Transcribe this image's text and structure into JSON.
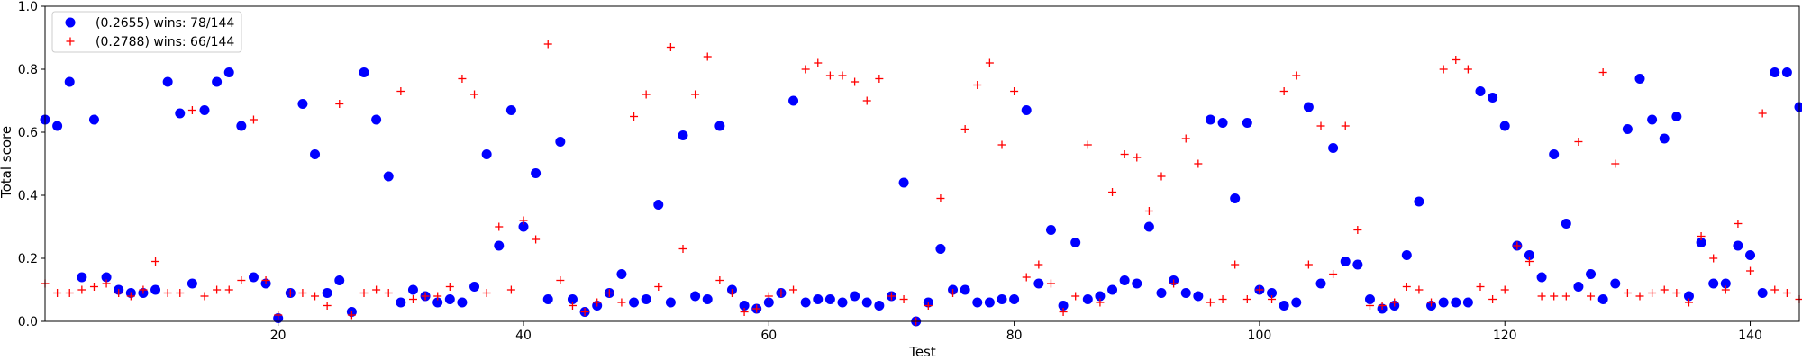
{
  "chart_data": {
    "type": "scatter",
    "title": "",
    "xlabel": "Test",
    "ylabel": "Total score",
    "xlim": [
      1,
      144
    ],
    "ylim": [
      0.0,
      1.0
    ],
    "x_ticks": [
      20,
      40,
      60,
      80,
      100,
      120,
      140
    ],
    "y_ticks": [
      0.0,
      0.2,
      0.4,
      0.6,
      0.8,
      1.0
    ],
    "x_tick_labels": [
      "20",
      "40",
      "60",
      "80",
      "100",
      "120",
      "140"
    ],
    "y_tick_labels": [
      "0.0",
      "0.2",
      "0.4",
      "0.6",
      "0.8",
      "1.0"
    ],
    "grid": false,
    "legend_position": "top-left",
    "series": [
      {
        "name": "(0.2655) wins: 78/144",
        "marker": "circle",
        "color": "#0000ff",
        "x": [
          1,
          2,
          3,
          4,
          5,
          6,
          7,
          8,
          9,
          10,
          11,
          12,
          13,
          14,
          15,
          16,
          17,
          18,
          19,
          20,
          21,
          22,
          23,
          24,
          25,
          26,
          27,
          28,
          29,
          30,
          31,
          32,
          33,
          34,
          35,
          36,
          37,
          38,
          39,
          40,
          41,
          42,
          43,
          44,
          45,
          46,
          47,
          48,
          49,
          50,
          51,
          52,
          53,
          54,
          55,
          56,
          57,
          58,
          59,
          60,
          61,
          62,
          63,
          64,
          65,
          66,
          67,
          68,
          69,
          70,
          71,
          72,
          73,
          74,
          75,
          76,
          77,
          78,
          79,
          80,
          81,
          82,
          83,
          84,
          85,
          86,
          87,
          88,
          89,
          90,
          91,
          92,
          93,
          94,
          95,
          96,
          97,
          98,
          99,
          100,
          101,
          102,
          103,
          104,
          105,
          106,
          107,
          108,
          109,
          110,
          111,
          112,
          113,
          114,
          115,
          116,
          117,
          118,
          119,
          120,
          121,
          122,
          123,
          124,
          125,
          126,
          127,
          128,
          129,
          130,
          131,
          132,
          133,
          134,
          135,
          136,
          137,
          138,
          139,
          140,
          141,
          142,
          143,
          144
        ],
        "y": [
          0.64,
          0.62,
          0.76,
          0.14,
          0.64,
          0.14,
          0.1,
          0.09,
          0.09,
          0.1,
          0.76,
          0.66,
          0.12,
          0.67,
          0.76,
          0.79,
          0.62,
          0.14,
          0.12,
          0.01,
          0.09,
          0.69,
          0.53,
          0.09,
          0.13,
          0.03,
          0.79,
          0.64,
          0.46,
          0.06,
          0.1,
          0.08,
          0.06,
          0.07,
          0.06,
          0.11,
          0.53,
          0.24,
          0.67,
          0.3,
          0.47,
          0.07,
          0.57,
          0.07,
          0.03,
          0.05,
          0.09,
          0.15,
          0.06,
          0.07,
          0.37,
          0.06,
          0.59,
          0.08,
          0.07,
          0.62,
          0.1,
          0.05,
          0.04,
          0.06,
          0.09,
          0.7,
          0.06,
          0.07,
          0.07,
          0.06,
          0.08,
          0.06,
          0.05,
          0.08,
          0.44,
          0.0,
          0.06,
          0.23,
          0.1,
          0.1,
          0.06,
          0.06,
          0.07,
          0.07,
          0.67,
          0.12,
          0.29,
          0.05,
          0.25,
          0.07,
          0.08,
          0.1,
          0.13,
          0.12,
          0.3,
          0.09,
          0.13,
          0.09,
          0.08,
          0.64,
          0.63,
          0.39,
          0.63,
          0.1,
          0.09,
          0.05,
          0.06,
          0.68,
          0.12,
          0.55,
          0.19,
          0.18,
          0.07,
          0.04,
          0.05,
          0.21,
          0.38,
          0.05,
          0.06,
          0.06,
          0.06,
          0.73,
          0.71,
          0.62,
          0.24,
          0.21,
          0.14,
          0.53,
          0.31,
          0.11,
          0.15,
          0.07,
          0.12,
          0.61,
          0.77,
          0.64,
          0.58,
          0.65,
          0.08,
          0.25,
          0.12,
          0.12,
          0.24,
          0.21,
          0.09,
          0.79,
          0.79,
          0.68
        ]
      },
      {
        "name": "(0.2788) wins: 66/144",
        "marker": "plus",
        "color": "#ff0000",
        "x": [
          1,
          2,
          3,
          4,
          5,
          6,
          7,
          8,
          9,
          10,
          11,
          12,
          13,
          14,
          15,
          16,
          17,
          18,
          19,
          20,
          21,
          22,
          23,
          24,
          25,
          26,
          27,
          28,
          29,
          30,
          31,
          32,
          33,
          34,
          35,
          36,
          37,
          38,
          39,
          40,
          41,
          42,
          43,
          44,
          45,
          46,
          47,
          48,
          49,
          50,
          51,
          52,
          53,
          54,
          55,
          56,
          57,
          58,
          59,
          60,
          61,
          62,
          63,
          64,
          65,
          66,
          67,
          68,
          69,
          70,
          71,
          72,
          73,
          74,
          75,
          76,
          77,
          78,
          79,
          80,
          81,
          82,
          83,
          84,
          85,
          86,
          87,
          88,
          89,
          90,
          91,
          92,
          93,
          94,
          95,
          96,
          97,
          98,
          99,
          100,
          101,
          102,
          103,
          104,
          105,
          106,
          107,
          108,
          109,
          110,
          111,
          112,
          113,
          114,
          115,
          116,
          117,
          118,
          119,
          120,
          121,
          122,
          123,
          124,
          125,
          126,
          127,
          128,
          129,
          130,
          131,
          132,
          133,
          134,
          135,
          136,
          137,
          138,
          139,
          140,
          141,
          142,
          143,
          144
        ],
        "y": [
          0.12,
          0.09,
          0.09,
          0.1,
          0.11,
          0.12,
          0.09,
          0.08,
          0.1,
          0.19,
          0.09,
          0.09,
          0.67,
          0.08,
          0.1,
          0.1,
          0.13,
          0.64,
          0.13,
          0.02,
          0.09,
          0.09,
          0.08,
          0.05,
          0.69,
          0.02,
          0.09,
          0.1,
          0.09,
          0.73,
          0.07,
          0.08,
          0.08,
          0.11,
          0.77,
          0.72,
          0.09,
          0.3,
          0.1,
          0.32,
          0.26,
          0.88,
          0.13,
          0.05,
          0.03,
          0.06,
          0.09,
          0.06,
          0.65,
          0.72,
          0.11,
          0.87,
          0.23,
          0.72,
          0.84,
          0.13,
          0.09,
          0.03,
          0.04,
          0.08,
          0.09,
          0.1,
          0.8,
          0.82,
          0.78,
          0.78,
          0.76,
          0.7,
          0.77,
          0.08,
          0.07,
          0.0,
          0.05,
          0.39,
          0.09,
          0.61,
          0.75,
          0.82,
          0.56,
          0.73,
          0.14,
          0.18,
          0.12,
          0.03,
          0.08,
          0.56,
          0.06,
          0.41,
          0.53,
          0.52,
          0.35,
          0.46,
          0.12,
          0.58,
          0.5,
          0.06,
          0.07,
          0.18,
          0.07,
          0.1,
          0.07,
          0.73,
          0.78,
          0.18,
          0.62,
          0.15,
          0.62,
          0.29,
          0.05,
          0.05,
          0.06,
          0.11,
          0.1,
          0.06,
          0.8,
          0.83,
          0.8,
          0.11,
          0.07,
          0.1,
          0.24,
          0.19,
          0.08,
          0.08,
          0.08,
          0.57,
          0.08,
          0.79,
          0.5,
          0.09,
          0.08,
          0.09,
          0.1,
          0.09,
          0.06,
          0.27,
          0.2,
          0.1,
          0.31,
          0.16,
          0.66,
          0.1,
          0.09,
          0.07
        ]
      }
    ]
  }
}
